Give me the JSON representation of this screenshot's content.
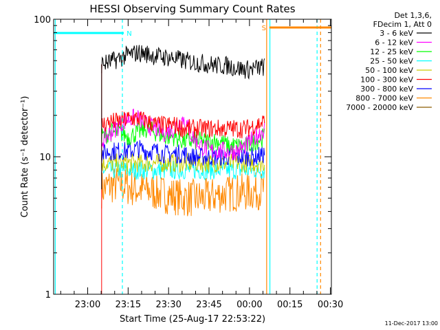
{
  "chart_data": {
    "type": "line",
    "title": "HESSI Observing Summary Count Rates",
    "xlabel": "Start Time (25-Aug-17 22:53:22)",
    "ylabel": "Count Rate (s⁻¹ detector⁻¹)",
    "yscale": "log",
    "ylim": [
      1,
      100
    ],
    "xlim_minutes": [
      -6,
      97
    ],
    "x_tick_labels": [
      "23:00",
      "23:15",
      "23:30",
      "23:45",
      "00:00",
      "00:15",
      "00:30"
    ],
    "x_tick_minutes": [
      6.63,
      21.63,
      36.63,
      51.63,
      66.63,
      81.63,
      96.63
    ],
    "y_tick_labels": [
      "1",
      "10",
      "100"
    ],
    "y_tick_values": [
      1,
      10,
      100
    ],
    "legend_header": [
      "Det 1,3,6,",
      "FDecim 1, Att 0"
    ],
    "legend_position": "right-outside",
    "footer_date": "11-Dec-2017 13:00",
    "markers": [
      {
        "label": "N",
        "color": "#00ffff",
        "start": -6,
        "end": 20,
        "y": 75,
        "edge_minutes": 20
      },
      {
        "label": "S",
        "color": "#ff8800",
        "start": 74,
        "end": 97,
        "y": 80,
        "edge_minutes": 74
      }
    ],
    "vertical_lines": [
      {
        "minute": 19.5,
        "color": "#00ffff",
        "style": "dashed"
      },
      {
        "minute": 74.2,
        "color": "#00ffff",
        "style": "solid"
      },
      {
        "minute": 91.7,
        "color": "#00ffff",
        "style": "dashed"
      },
      {
        "minute": 73.0,
        "color": "#ff8800",
        "style": "solid"
      },
      {
        "minute": 93.0,
        "color": "#ff8800",
        "style": "dashed"
      },
      {
        "minute": -5.4,
        "color": "#00ffff",
        "style": "solid"
      }
    ],
    "data_start_minute": 11.8,
    "data_end_minute": 72.2,
    "series": [
      {
        "name": "3 - 6 keV",
        "color": "#000000",
        "values": [
          47,
          49,
          52,
          55,
          57,
          56,
          54,
          53,
          52,
          50,
          49,
          48,
          47,
          46,
          46,
          44,
          43,
          44,
          45
        ]
      },
      {
        "name": "6 - 12 keV",
        "color": "#ff00ff",
        "values": [
          13,
          15,
          17,
          19,
          19,
          17,
          16,
          15,
          16,
          19,
          14,
          12,
          11,
          11,
          11,
          11,
          12,
          14,
          16
        ]
      },
      {
        "name": "12 - 25 keV",
        "color": "#00ff00",
        "values": [
          14,
          15,
          15,
          14,
          15,
          16,
          15,
          14,
          14,
          13,
          13,
          13,
          13,
          13,
          12,
          12,
          12,
          13,
          14
        ]
      },
      {
        "name": "25 - 50 keV",
        "color": "#00ffff",
        "values": [
          8,
          8,
          8,
          8,
          8,
          8,
          8,
          8,
          8,
          8,
          8,
          8,
          8,
          8,
          8,
          8,
          8,
          8,
          8
        ]
      },
      {
        "name": "50 - 100 keV",
        "color": "#cccc00",
        "values": [
          9,
          9,
          9,
          9,
          9,
          9,
          9,
          9,
          9,
          9,
          9,
          9,
          9,
          9,
          9,
          9,
          9,
          9,
          9
        ]
      },
      {
        "name": "100 - 300 keV",
        "color": "#ff0000",
        "values": [
          17,
          18,
          18,
          19,
          19,
          18,
          17,
          17,
          17,
          16,
          16,
          16,
          16,
          16,
          16,
          16,
          16,
          17,
          18
        ]
      },
      {
        "name": "300 - 800 keV",
        "color": "#0000ff",
        "values": [
          10.5,
          11,
          11,
          11,
          11.5,
          11,
          11,
          10.5,
          10.5,
          10.5,
          10,
          10,
          10,
          10,
          10,
          10,
          10,
          10,
          10.5
        ]
      },
      {
        "name": "800 - 7000 keV",
        "color": "#ff8800",
        "values": [
          5.8,
          6.2,
          6.3,
          6.0,
          5.8,
          5.7,
          5.5,
          5.3,
          5.2,
          5.0,
          5.0,
          5.0,
          5.1,
          5.3,
          5.4,
          5.5,
          5.5,
          5.6,
          5.8
        ]
      },
      {
        "name": "7000 - 20000 keV",
        "color": "#8b5a00",
        "values": []
      }
    ]
  }
}
